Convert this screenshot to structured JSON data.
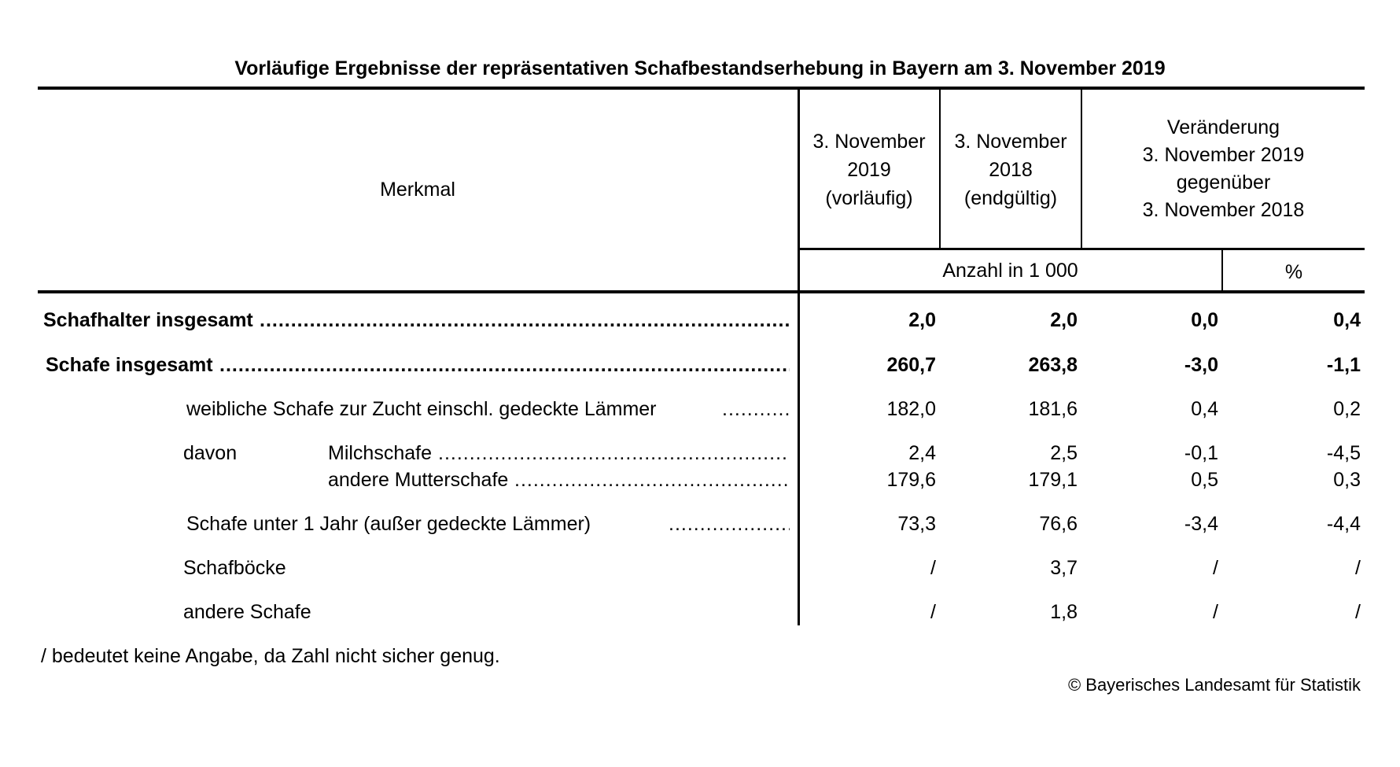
{
  "title": "Vorläufige Ergebnisse der repräsentativen Schafbestandserhebung in Bayern am 3. November 2019",
  "header": {
    "merkmal": "Merkmal",
    "col1": [
      "3. November",
      "2019",
      "(vorläufig)"
    ],
    "col2": [
      "3. November",
      "2018",
      "(endgültig)"
    ],
    "col3": [
      "Veränderung",
      "3. November 2019",
      "gegenüber",
      "3. November 2018"
    ],
    "unit_count": "Anzahl in 1 000",
    "unit_pct": "%"
  },
  "rows": [
    {
      "label": "Schafhalter insgesamt",
      "values": [
        "2,0",
        "2,0",
        "0,0",
        "0,4"
      ]
    },
    {
      "label": "Schafe insgesamt",
      "values": [
        "260,7",
        "263,8",
        "-3,0",
        "-1,1"
      ]
    },
    {
      "label": "weibliche Schafe zur Zucht einschl. gedeckte Lämmer",
      "values": [
        "182,0",
        "181,6",
        "0,4",
        "0,2"
      ]
    },
    {
      "prefix": "davon",
      "label": "Milchschafe",
      "values": [
        "2,4",
        "2,5",
        "-0,1",
        "-4,5"
      ]
    },
    {
      "label": "andere Mutterschafe",
      "values": [
        "179,6",
        "179,1",
        "0,5",
        "0,3"
      ]
    },
    {
      "label": "Schafe unter 1 Jahr (außer gedeckte Lämmer)",
      "values": [
        "73,3",
        "76,6",
        "-3,4",
        "-4,4"
      ]
    },
    {
      "label": "Schafböcke",
      "values": [
        "/",
        "3,7",
        "/",
        "/"
      ]
    },
    {
      "label": "andere Schafe",
      "values": [
        "/",
        "1,8",
        "/",
        "/"
      ]
    }
  ],
  "footnote": "/ bedeutet keine Angabe, da Zahl nicht sicher genug.",
  "copyright": "© Bayerisches Landesamt für Statistik"
}
